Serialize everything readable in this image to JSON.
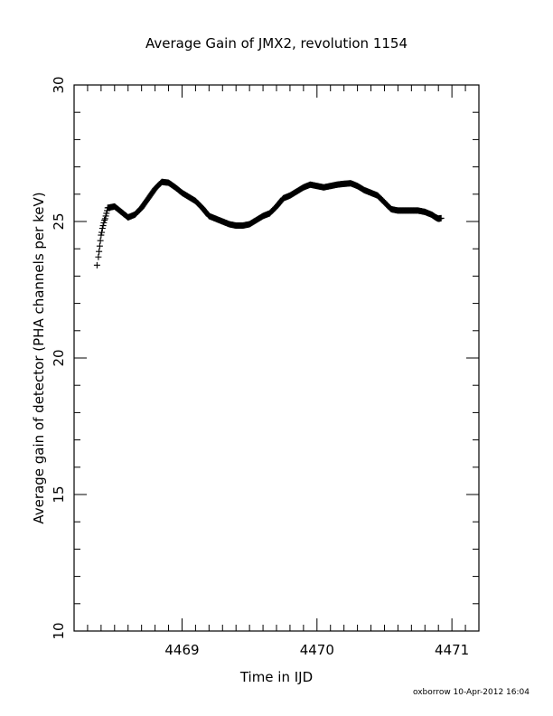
{
  "chart_data": {
    "type": "scatter",
    "title": "Average Gain of JMX2, revolution 1154",
    "xlabel": "Time in IJD",
    "ylabel": "Average gain of detector (PHA channels per keV)",
    "xlim": [
      4468.2,
      4471.2
    ],
    "ylim": [
      10,
      30
    ],
    "xticks": [
      4469,
      4470,
      4471
    ],
    "xtick_labels": [
      "4469",
      "4470",
      "4471"
    ],
    "yticks": [
      10,
      15,
      20,
      25,
      30
    ],
    "ytick_labels": [
      "10",
      "15",
      "20",
      "25",
      "30"
    ],
    "marker": "plus",
    "grid": false,
    "legend": "none",
    "color": "#000000",
    "series": [
      {
        "x": [
          4468.37,
          4468.38,
          4468.385,
          4468.39,
          4468.395,
          4468.4,
          4468.405,
          4468.41,
          4468.415,
          4468.42,
          4468.425,
          4468.43,
          4468.435,
          4468.44,
          4468.445,
          4468.45
        ],
        "y": [
          23.4,
          23.7,
          23.9,
          24.1,
          24.3,
          24.5,
          24.6,
          24.75,
          24.85,
          24.95,
          25.05,
          25.1,
          25.2,
          25.3,
          25.4,
          25.5
        ]
      },
      {
        "x": [
          4468.45,
          4468.5,
          4468.55,
          4468.6,
          4468.65,
          4468.7,
          4468.75,
          4468.8,
          4468.85,
          4468.9,
          4468.95,
          4469.0,
          4469.05,
          4469.1,
          4469.15,
          4469.2,
          4469.25,
          4469.3,
          4469.35,
          4469.4,
          4469.45,
          4469.5,
          4469.55,
          4469.6,
          4469.65,
          4469.7,
          4469.75,
          4469.8,
          4469.85,
          4469.9,
          4469.95,
          4470.0,
          4470.05,
          4470.1,
          4470.15,
          4470.2,
          4470.25,
          4470.3,
          4470.35,
          4470.4,
          4470.45,
          4470.5,
          4470.55,
          4470.6,
          4470.65,
          4470.7,
          4470.75,
          4470.8,
          4470.85,
          4470.88,
          4470.9,
          4470.92
        ],
        "y": [
          25.5,
          25.55,
          25.35,
          25.15,
          25.25,
          25.5,
          25.85,
          26.2,
          26.45,
          26.42,
          26.25,
          26.05,
          25.9,
          25.75,
          25.5,
          25.2,
          25.1,
          25.0,
          24.9,
          24.85,
          24.85,
          24.9,
          25.05,
          25.2,
          25.3,
          25.55,
          25.85,
          25.95,
          26.1,
          26.25,
          26.35,
          26.3,
          26.25,
          26.3,
          26.35,
          26.38,
          26.4,
          26.3,
          26.15,
          26.05,
          25.95,
          25.7,
          25.45,
          25.4,
          25.4,
          25.4,
          25.4,
          25.35,
          25.25,
          25.15,
          25.1,
          25.12
        ]
      }
    ]
  },
  "footer": {
    "credit": "oxborrow 10-Apr-2012 16:04"
  }
}
